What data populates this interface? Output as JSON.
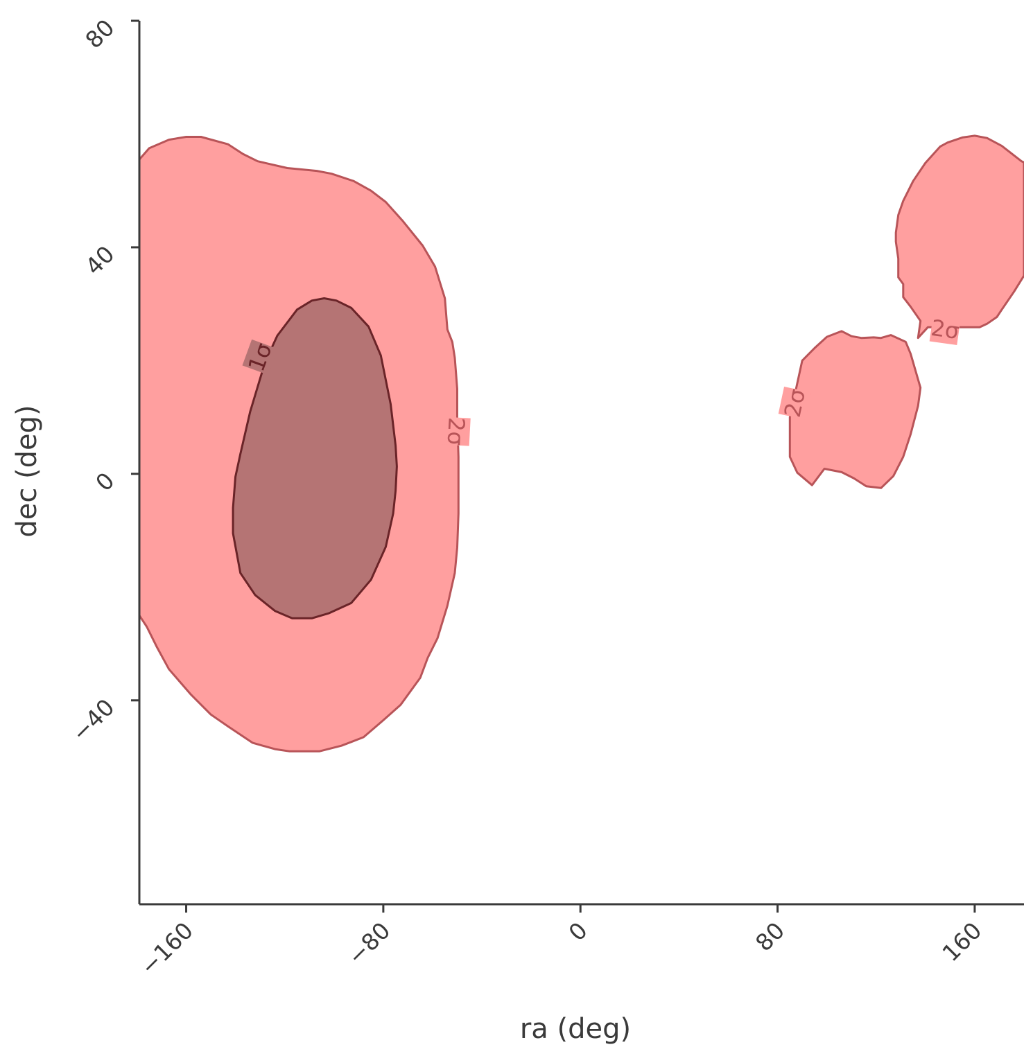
{
  "chart_data": {
    "type": "contour",
    "xlabel": "ra (deg)",
    "ylabel": "dec (deg)",
    "xlim": [
      -179,
      180
    ],
    "ylim": [
      -76,
      80
    ],
    "xticks": [
      -160,
      -80,
      0,
      80,
      160
    ],
    "yticks": [
      80,
      40,
      0,
      -40
    ],
    "xtick_labels": [
      "−160",
      "−80",
      "0",
      "80",
      "160"
    ],
    "ytick_labels": [
      "80",
      "40",
      "0",
      "−40"
    ],
    "grid": false,
    "colors": {
      "two_sigma_fill": "#ff9f9f",
      "two_sigma_edge": "#b85458",
      "one_sigma_fill": "#b57474",
      "one_sigma_edge": "#6a2428",
      "two_sigma_label": "#b85458",
      "one_sigma_label": "#6a2428",
      "axis": "#3a3a3a"
    },
    "regions": [
      {
        "level": "2σ",
        "points": [
          [
            -179,
            55.5
          ],
          [
            -175,
            57.5
          ],
          [
            -167,
            59.0
          ],
          [
            -160,
            59.5
          ],
          [
            -154,
            59.5
          ],
          [
            -143,
            58.2
          ],
          [
            -137,
            56.5
          ],
          [
            -131,
            55.2
          ],
          [
            -119,
            54.0
          ],
          [
            -107,
            53.5
          ],
          [
            -101,
            53.0
          ],
          [
            -92,
            51.7
          ],
          [
            -85,
            50.0
          ],
          [
            -79,
            48.0
          ],
          [
            -72,
            44.6
          ],
          [
            -64,
            40.3
          ],
          [
            -59,
            36.6
          ],
          [
            -55,
            31.0
          ],
          [
            -54,
            25.5
          ],
          [
            -52,
            23.3
          ],
          [
            -51,
            20.5
          ],
          [
            -50,
            15.0
          ],
          [
            -50,
            10.0
          ],
          [
            -49.5,
            3.0
          ],
          [
            -49.5,
            -7.0
          ],
          [
            -50,
            -13.0
          ],
          [
            -51,
            -17.5
          ],
          [
            -54,
            -23.3
          ],
          [
            -58,
            -29.0
          ],
          [
            -62,
            -32.5
          ],
          [
            -65,
            -36.0
          ],
          [
            -73,
            -40.8
          ],
          [
            -80,
            -43.5
          ],
          [
            -88,
            -46.5
          ],
          [
            -97,
            -48.0
          ],
          [
            -106,
            -49.0
          ],
          [
            -118,
            -49.0
          ],
          [
            -124,
            -48.6
          ],
          [
            -133,
            -47.5
          ],
          [
            -143,
            -44.6
          ],
          [
            -150,
            -42.5
          ],
          [
            -158,
            -39.0
          ],
          [
            -167,
            -34.5
          ],
          [
            -172,
            -30.5
          ],
          [
            -176,
            -27.0
          ],
          [
            -179,
            -25.0
          ]
        ]
      },
      {
        "level": "1σ",
        "points": [
          [
            -115,
            29.0
          ],
          [
            -109,
            30.6
          ],
          [
            -104,
            31.0
          ],
          [
            -99,
            30.6
          ],
          [
            -93,
            29.3
          ],
          [
            -86,
            26.0
          ],
          [
            -81,
            20.9
          ],
          [
            -77,
            12.3
          ],
          [
            -75,
            5.0
          ],
          [
            -74.5,
            1.3
          ],
          [
            -75,
            -3.0
          ],
          [
            -76,
            -7.0
          ],
          [
            -79,
            -12.9
          ],
          [
            -85,
            -18.7
          ],
          [
            -93,
            -22.8
          ],
          [
            -102,
            -24.6
          ],
          [
            -109,
            -25.5
          ],
          [
            -117,
            -25.5
          ],
          [
            -124,
            -24.2
          ],
          [
            -132,
            -21.4
          ],
          [
            -138,
            -17.5
          ],
          [
            -141,
            -10.5
          ],
          [
            -141,
            -6.0
          ],
          [
            -140,
            -0.5
          ],
          [
            -138,
            3.5
          ],
          [
            -134,
            11.0
          ],
          [
            -128,
            19.7
          ],
          [
            -123,
            24.4
          ]
        ]
      },
      {
        "level": "2σ",
        "points": [
          [
            149,
            58.5
          ],
          [
            155,
            59.4
          ],
          [
            160,
            59.7
          ],
          [
            165,
            59.3
          ],
          [
            171,
            57.9
          ],
          [
            179,
            55.2
          ],
          [
            180,
            55.0
          ],
          [
            180,
            35.0
          ],
          [
            176,
            32.2
          ],
          [
            171,
            29.0
          ],
          [
            169,
            27.7
          ],
          [
            165,
            26.5
          ],
          [
            162,
            25.9
          ],
          [
            141,
            25.9
          ],
          [
            137,
            24.0
          ],
          [
            138,
            27.0
          ],
          [
            134,
            29.5
          ],
          [
            131,
            31.2
          ],
          [
            131,
            33.5
          ],
          [
            129,
            34.7
          ],
          [
            129,
            38.0
          ],
          [
            128,
            41.0
          ],
          [
            128,
            42.6
          ],
          [
            129,
            45.7
          ],
          [
            131,
            48.2
          ],
          [
            135,
            51.7
          ],
          [
            140,
            54.9
          ],
          [
            146,
            57.8
          ]
        ]
      },
      {
        "level": "2σ",
        "points": [
          [
            100,
            24.2
          ],
          [
            106,
            25.2
          ],
          [
            110,
            24.3
          ],
          [
            114,
            24.0
          ],
          [
            119,
            24.1
          ],
          [
            122,
            24.0
          ],
          [
            126,
            24.5
          ],
          [
            132,
            23.3
          ],
          [
            134,
            21.2
          ],
          [
            136,
            18.2
          ],
          [
            138,
            15.2
          ],
          [
            137,
            12.0
          ],
          [
            134,
            7.0
          ],
          [
            131,
            3.0
          ],
          [
            127,
            -0.4
          ],
          [
            122,
            -2.5
          ],
          [
            116,
            -2.2
          ],
          [
            111,
            -0.8
          ],
          [
            106,
            0.3
          ],
          [
            99,
            0.9
          ],
          [
            94,
            -2.0
          ],
          [
            88,
            0.2
          ],
          [
            85,
            3.0
          ],
          [
            85,
            10.0
          ],
          [
            90,
            20.0
          ],
          [
            95,
            22.2
          ]
        ]
      }
    ],
    "annotations": [
      {
        "text": "1σ",
        "at": [
          -130,
          20.6
        ],
        "rotation": -70,
        "level": "1σ"
      },
      {
        "text": "2σ",
        "at": [
          -50.5,
          7.5
        ],
        "rotation": 93,
        "level": "2σ"
      },
      {
        "text": "2σ",
        "at": [
          87,
          12.5
        ],
        "rotation": -78,
        "level": "2σ"
      },
      {
        "text": "2σ",
        "at": [
          148,
          25.5
        ],
        "rotation": 8,
        "level": "2σ"
      }
    ]
  }
}
